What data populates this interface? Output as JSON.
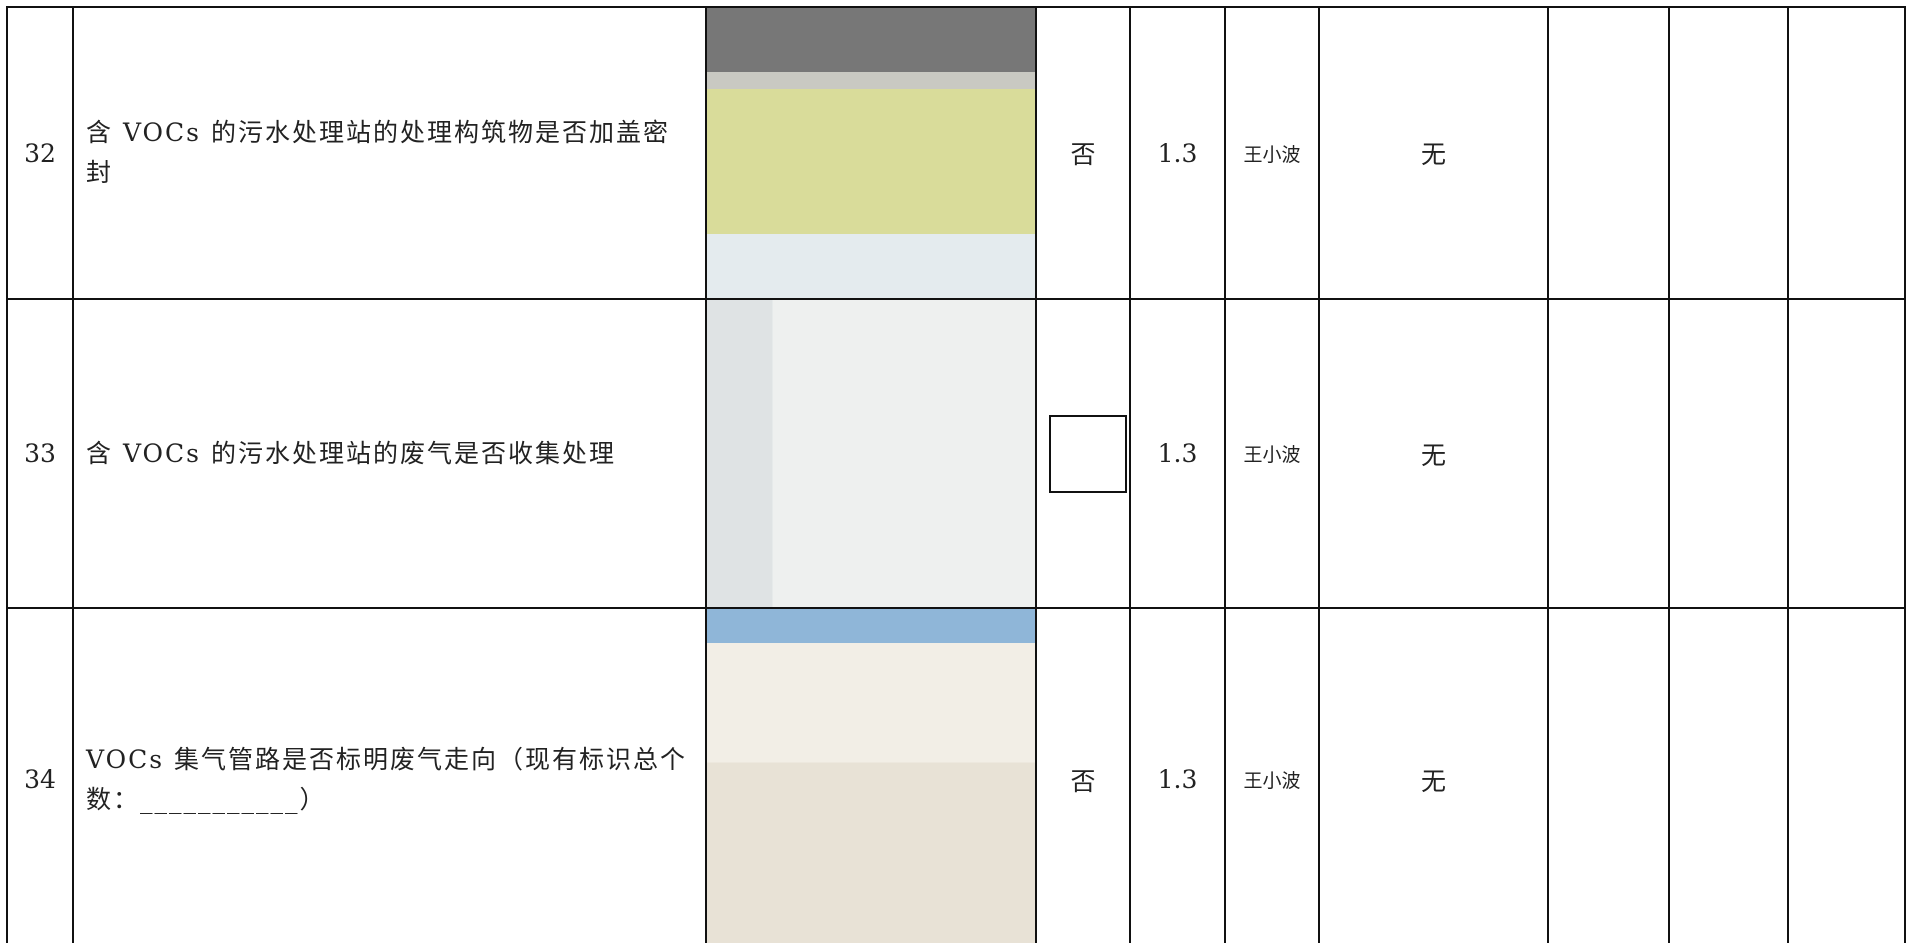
{
  "table": {
    "rows": [
      {
        "no": "32",
        "item": "含 VOCs 的污水处理站的处理构筑物是否加盖密封",
        "result": "否",
        "score": "1.3",
        "inspector": "王小波",
        "remark": "无"
      },
      {
        "no": "33",
        "item": "含 VOCs 的污水处理站的废气是否收集处理",
        "score": "1.3",
        "inspector": "王小波",
        "remark": "无"
      },
      {
        "no": "34",
        "item": "VOCs 集气管路是否标明废气走向（现有标识总个数：___________）",
        "result": "否",
        "score": "1.3",
        "inspector": "王小波",
        "remark": "无"
      }
    ]
  }
}
